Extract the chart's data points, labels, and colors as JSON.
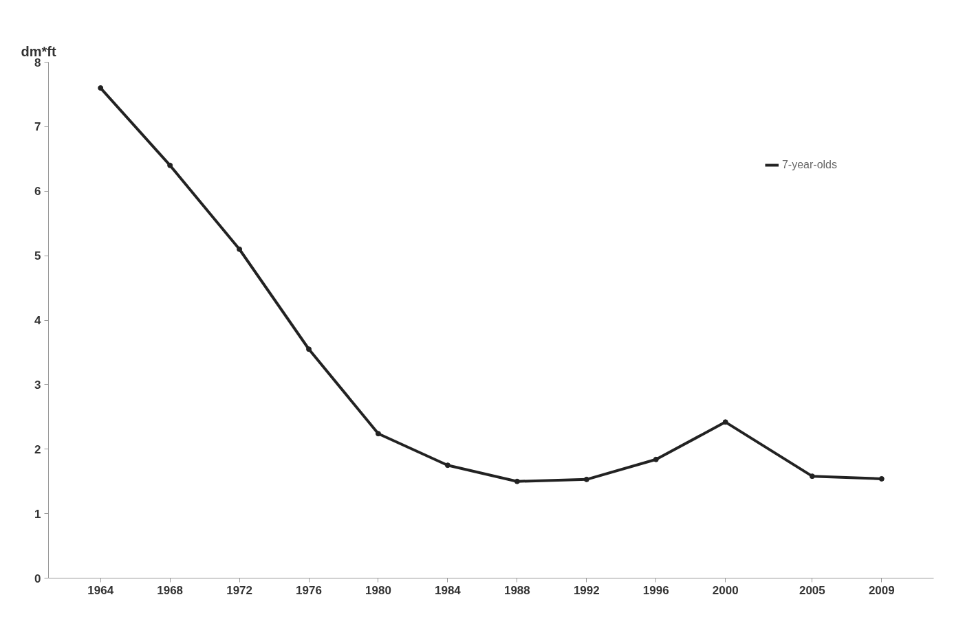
{
  "chart_data": {
    "type": "line",
    "ylabel": "dm*ft",
    "x": [
      1964,
      1968,
      1972,
      1976,
      1980,
      1984,
      1988,
      1992,
      1996,
      2000,
      2005,
      2009
    ],
    "series": [
      {
        "name": "7-year-olds",
        "color": "#222222",
        "values": [
          7.6,
          6.4,
          5.1,
          3.55,
          2.24,
          1.75,
          1.5,
          1.53,
          1.84,
          2.42,
          1.58,
          1.54
        ]
      }
    ],
    "xlim": [
      1961,
      2012
    ],
    "xticks": [
      1964,
      1968,
      1972,
      1976,
      1980,
      1984,
      1988,
      1992,
      1996,
      2000,
      2005,
      2009
    ],
    "ylim": [
      0,
      8
    ],
    "yticks": [
      0,
      1,
      2,
      3,
      4,
      5,
      6,
      7,
      8
    ],
    "grid": false,
    "legend": "top right",
    "marker": "circle",
    "line_style": "solid"
  }
}
